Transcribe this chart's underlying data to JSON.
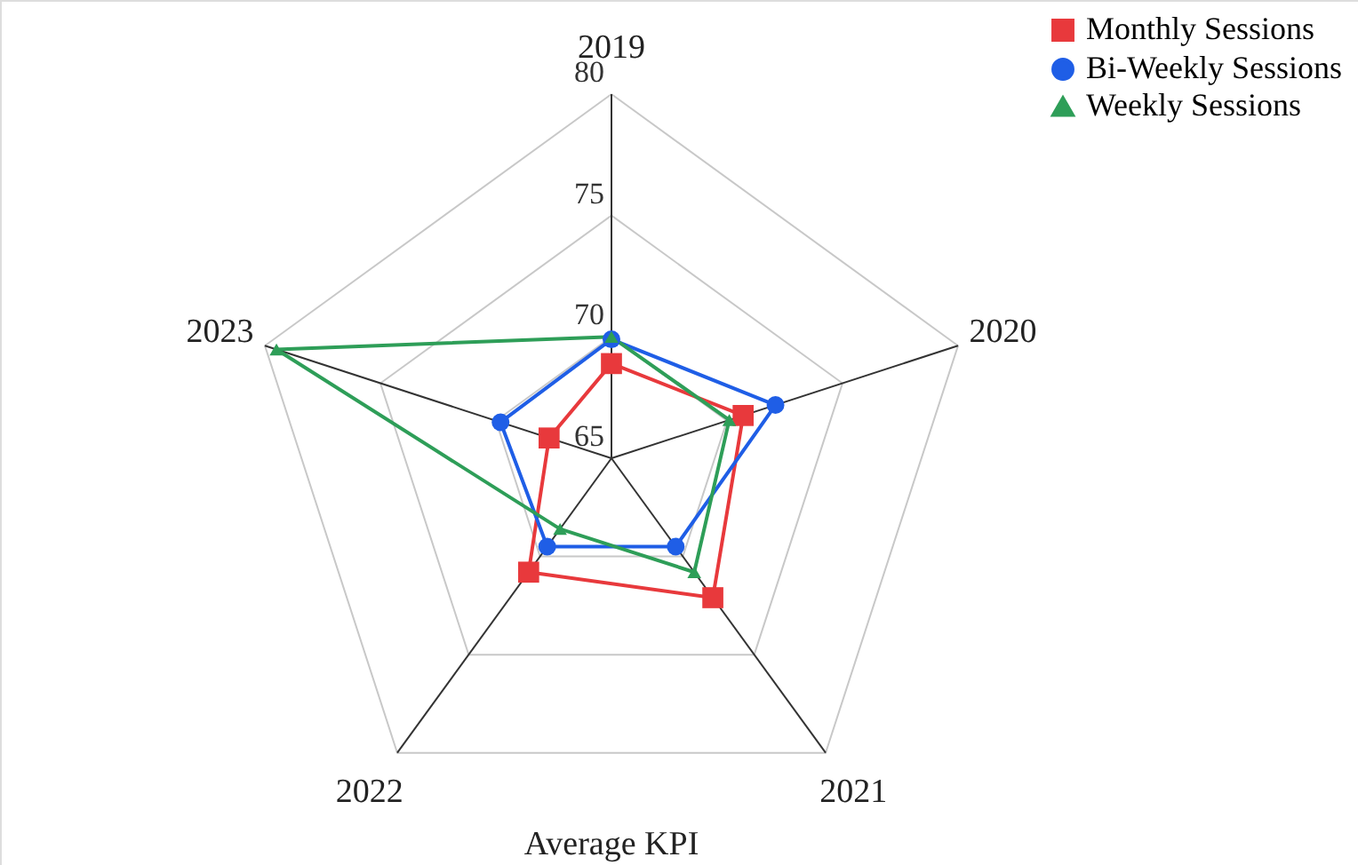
{
  "chart_data": {
    "type": "radar",
    "xlabel": "Average KPI",
    "categories": [
      "2019",
      "2020",
      "2021",
      "2022",
      "2023"
    ],
    "ylim": [
      65,
      80
    ],
    "yticks": [
      65,
      70,
      75,
      80
    ],
    "grid": true,
    "legend": "top right",
    "line_style": "solid",
    "series": [
      {
        "name": "Monthly Sessions",
        "color": "#e8393c",
        "marker": "square",
        "values": [
          68.9,
          70.7,
          72.1,
          70.8,
          67.7
        ]
      },
      {
        "name": "Bi-Weekly Sessions",
        "color": "#1f5ee6",
        "marker": "circle",
        "values": [
          69.9,
          72.1,
          69.5,
          69.5,
          69.8
        ]
      },
      {
        "name": "Weekly Sessions",
        "color": "#2e9e58",
        "marker": "triangle",
        "values": [
          70.0,
          70.1,
          70.8,
          68.6,
          79.5
        ]
      }
    ]
  }
}
